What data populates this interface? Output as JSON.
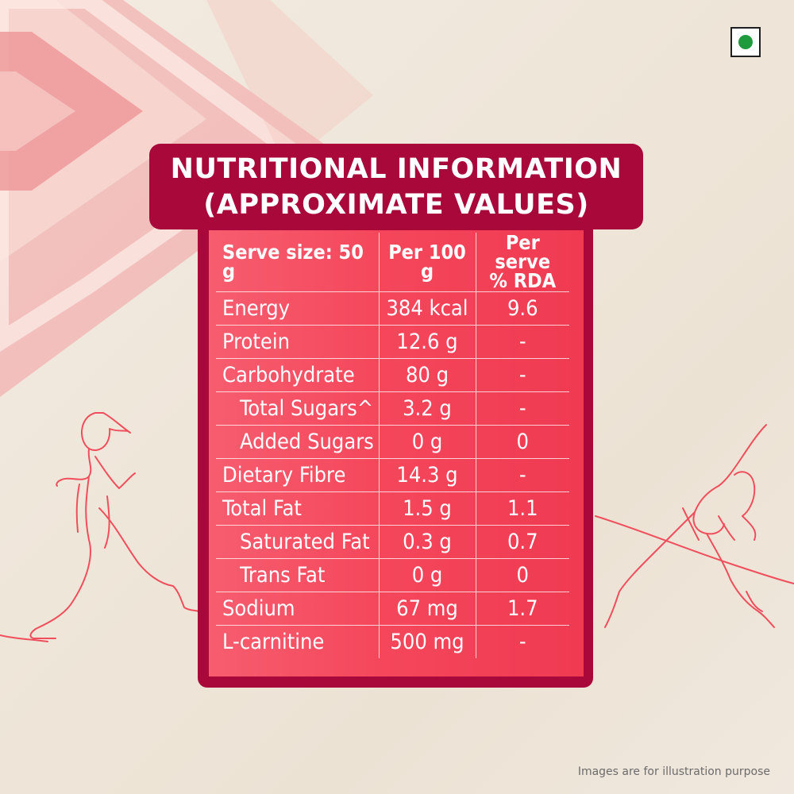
{
  "title": {
    "line1": "NUTRITIONAL INFORMATION",
    "line2": "(APPROXIMATE VALUES)"
  },
  "table": {
    "headers": {
      "serve_size": "Serve size: 50 g",
      "per_100g": "Per 100 g",
      "per_serve_line1": "Per serve",
      "per_serve_line2": "% RDA"
    },
    "rows": [
      {
        "name": "Energy",
        "per100": "384 kcal",
        "rda": "9.6"
      },
      {
        "name": "Protein",
        "per100": "12.6 g",
        "rda": "-"
      },
      {
        "name": "Carbohydrate",
        "per100": "80 g",
        "rda": "-"
      },
      {
        "name": "Total Sugars^",
        "per100": "3.2 g",
        "rda": "-"
      },
      {
        "name": "Added Sugars",
        "per100": "0 g",
        "rda": "0"
      },
      {
        "name": "Dietary Fibre",
        "per100": "14.3 g",
        "rda": "-"
      },
      {
        "name": "Total Fat",
        "per100": "1.5 g",
        "rda": "1.1"
      },
      {
        "name": "Saturated Fat",
        "per100": "0.3 g",
        "rda": "0.7"
      },
      {
        "name": "Trans Fat",
        "per100": "0 g",
        "rda": "0"
      },
      {
        "name": "Sodium",
        "per100": "67 mg",
        "rda": "1.7"
      },
      {
        "name": "L-carnitine",
        "per100": "500 mg",
        "rda": "-"
      }
    ]
  },
  "footnote": "Images are for illustration purpose",
  "colors": {
    "maroon": "#a8083a",
    "coral": "#f5475c",
    "line_art": "#ef4f5d",
    "veg_green": "#1f9b3d"
  },
  "icons": {
    "veg_mark": "veg-symbol-icon",
    "runner": "runner-line-art-icon",
    "yoga": "yoga-line-art-icon",
    "chevrons": "chevron-decoration-icon"
  }
}
